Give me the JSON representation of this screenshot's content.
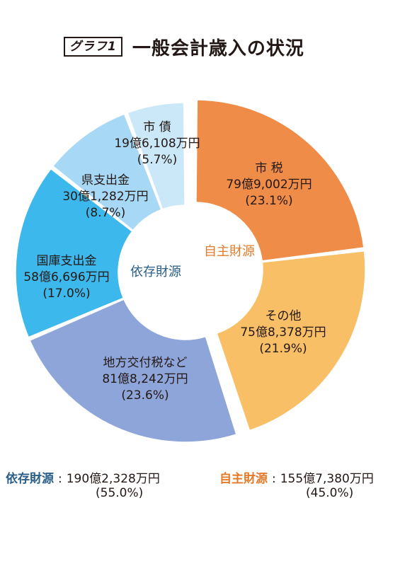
{
  "header": {
    "badge": "グラフ1",
    "title": "一般会計歳入の状況"
  },
  "chart_data": {
    "type": "pie",
    "title": "一般会計歳入の状況",
    "groups": [
      {
        "name": "自主財源",
        "color": "#e47b2a",
        "amount": "155億7,380万円",
        "percent": "(45.0%)"
      },
      {
        "name": "依存財源",
        "color": "#2a5f8a",
        "amount": "190億2,328万円",
        "percent": "(55.0%)"
      }
    ],
    "slices": [
      {
        "label": "市 税",
        "amount": "79億9,002万円",
        "percent_label": "(23.1%)",
        "value": 23.1,
        "group": "自主財源",
        "color": "#ef8c47"
      },
      {
        "label": "その他",
        "amount": "75億8,378万円",
        "percent_label": "(21.9%)",
        "value": 21.9,
        "group": "自主財源",
        "color": "#f8bf66"
      },
      {
        "label": "地方交付税など",
        "amount": "81億8,242万円",
        "percent_label": "(23.6%)",
        "value": 23.6,
        "group": "依存財源",
        "color": "#8ea5d9"
      },
      {
        "label": "国庫支出金",
        "amount": "58億6,696万円",
        "percent_label": "(17.0%)",
        "value": 17.0,
        "group": "依存財源",
        "color": "#3cb8ec"
      },
      {
        "label": "県支出金",
        "amount": "30億1,282万円",
        "percent_label": "(8.7%)",
        "value": 8.7,
        "group": "依存財源",
        "color": "#a7d9f6"
      },
      {
        "label": "市 債",
        "amount": "19億6,108万円",
        "percent_label": "(5.7%)",
        "value": 5.7,
        "group": "依存財源",
        "color": "#cae8f8"
      }
    ]
  }
}
